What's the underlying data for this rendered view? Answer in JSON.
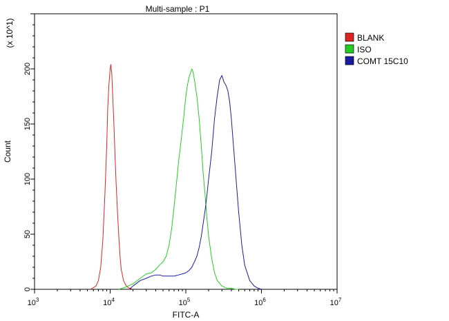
{
  "chart_data": {
    "type": "line",
    "title": "Multi-sample : P1",
    "xlabel": "FITC-A",
    "ylabel": "Count",
    "y_multiplier_label": "(x 10^1)",
    "x_scale": "log",
    "xlim": [
      1000,
      10000000
    ],
    "ylim": [
      0,
      250
    ],
    "x_ticks": [
      {
        "value": 1000,
        "base": "10",
        "exp": "3"
      },
      {
        "value": 10000,
        "base": "10",
        "exp": "4"
      },
      {
        "value": 100000,
        "base": "10",
        "exp": "5"
      },
      {
        "value": 1000000,
        "base": "10",
        "exp": "6"
      },
      {
        "value": 10000000,
        "base": "10",
        "exp": "7"
      }
    ],
    "y_ticks": [
      0,
      50,
      100,
      150,
      200
    ],
    "grid": false,
    "legend_position": "top-right",
    "series": [
      {
        "name": "BLANK",
        "color": "#dd2222",
        "x": [
          5500,
          6500,
          7000,
          7500,
          8000,
          8500,
          9000,
          9300,
          9600,
          10000,
          10200,
          10500,
          10800,
          11200,
          11600,
          12000,
          12500,
          13000,
          13500,
          14000,
          15000,
          16000,
          17000,
          18000,
          20000
        ],
        "y": [
          0,
          3,
          8,
          20,
          45,
          85,
          130,
          165,
          185,
          200,
          204,
          196,
          175,
          150,
          120,
          95,
          70,
          48,
          30,
          18,
          8,
          4,
          2,
          1,
          0
        ]
      },
      {
        "name": "ISO",
        "color": "#22cc22",
        "x": [
          13000,
          16000,
          20000,
          25000,
          30000,
          35000,
          40000,
          45000,
          50000,
          55000,
          60000,
          65000,
          70000,
          75000,
          80000,
          85000,
          90000,
          95000,
          100000,
          105000,
          110000,
          115000,
          120000,
          125000,
          130000,
          140000,
          150000,
          160000,
          170000,
          180000,
          190000,
          200000,
          220000,
          240000,
          260000,
          300000,
          350000,
          400000,
          450000,
          500000
        ],
        "y": [
          0,
          2,
          5,
          10,
          14,
          15,
          18,
          22,
          25,
          30,
          40,
          55,
          75,
          95,
          115,
          130,
          145,
          160,
          175,
          185,
          192,
          196,
          200,
          197,
          190,
          175,
          155,
          130,
          105,
          85,
          65,
          48,
          28,
          15,
          8,
          3,
          1,
          1,
          0,
          0
        ]
      },
      {
        "name": "COMT 15C10",
        "color": "#1a1aa0",
        "x": [
          18000,
          20000,
          25000,
          30000,
          35000,
          40000,
          45000,
          50000,
          60000,
          70000,
          80000,
          90000,
          100000,
          110000,
          120000,
          130000,
          140000,
          150000,
          160000,
          170000,
          180000,
          190000,
          200000,
          220000,
          240000,
          260000,
          280000,
          300000,
          320000,
          340000,
          360000,
          380000,
          400000,
          450000,
          500000,
          550000,
          600000,
          700000,
          800000,
          900000,
          1000000
        ],
        "y": [
          0,
          3,
          8,
          10,
          12,
          13,
          13,
          12,
          12,
          12,
          13,
          14,
          15,
          17,
          20,
          25,
          30,
          38,
          48,
          60,
          72,
          85,
          100,
          125,
          155,
          175,
          190,
          194,
          188,
          185,
          180,
          170,
          155,
          110,
          70,
          40,
          22,
          8,
          3,
          1,
          0
        ]
      }
    ]
  }
}
